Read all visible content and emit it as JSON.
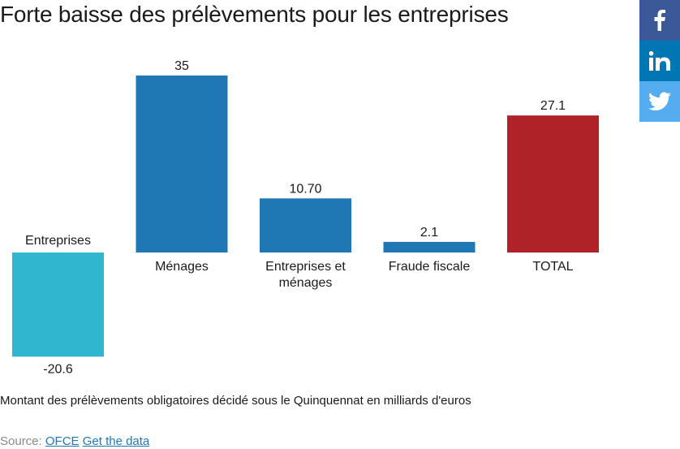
{
  "chart_data": {
    "type": "bar",
    "title": "Forte baisse des prélèvements pour les entreprises",
    "categories": [
      "Entreprises",
      "Ménages",
      "Entreprises et ménages",
      "Fraude fiscale",
      "TOTAL"
    ],
    "category_lines": [
      [
        "Entreprises"
      ],
      [
        "Ménages"
      ],
      [
        "Entreprises et",
        "ménages"
      ],
      [
        "Fraude fiscale"
      ],
      [
        "TOTAL"
      ]
    ],
    "values": [
      -20.6,
      35,
      10.7,
      2.1,
      27.1
    ],
    "value_labels": [
      "-20.6",
      "35",
      "10.70",
      "2.1",
      "27.1"
    ],
    "colors": [
      "#31b6cf",
      "#1f78b4",
      "#1f78b4",
      "#1f78b4",
      "#ae2228"
    ],
    "xlabel": "",
    "ylabel": "",
    "ylim": [
      -20.6,
      35
    ],
    "grid": false,
    "legend": "none"
  },
  "caption": "Montant des prélèvements obligatoires décidé sous le Quinquennat en milliards d'euros",
  "source": {
    "label": "Source:",
    "link_ofce": "OFCE",
    "link_data": "Get the data"
  },
  "social": {
    "facebook_color": "#3b5998",
    "linkedin_color": "#0077b5",
    "twitter_color": "#55acee"
  }
}
